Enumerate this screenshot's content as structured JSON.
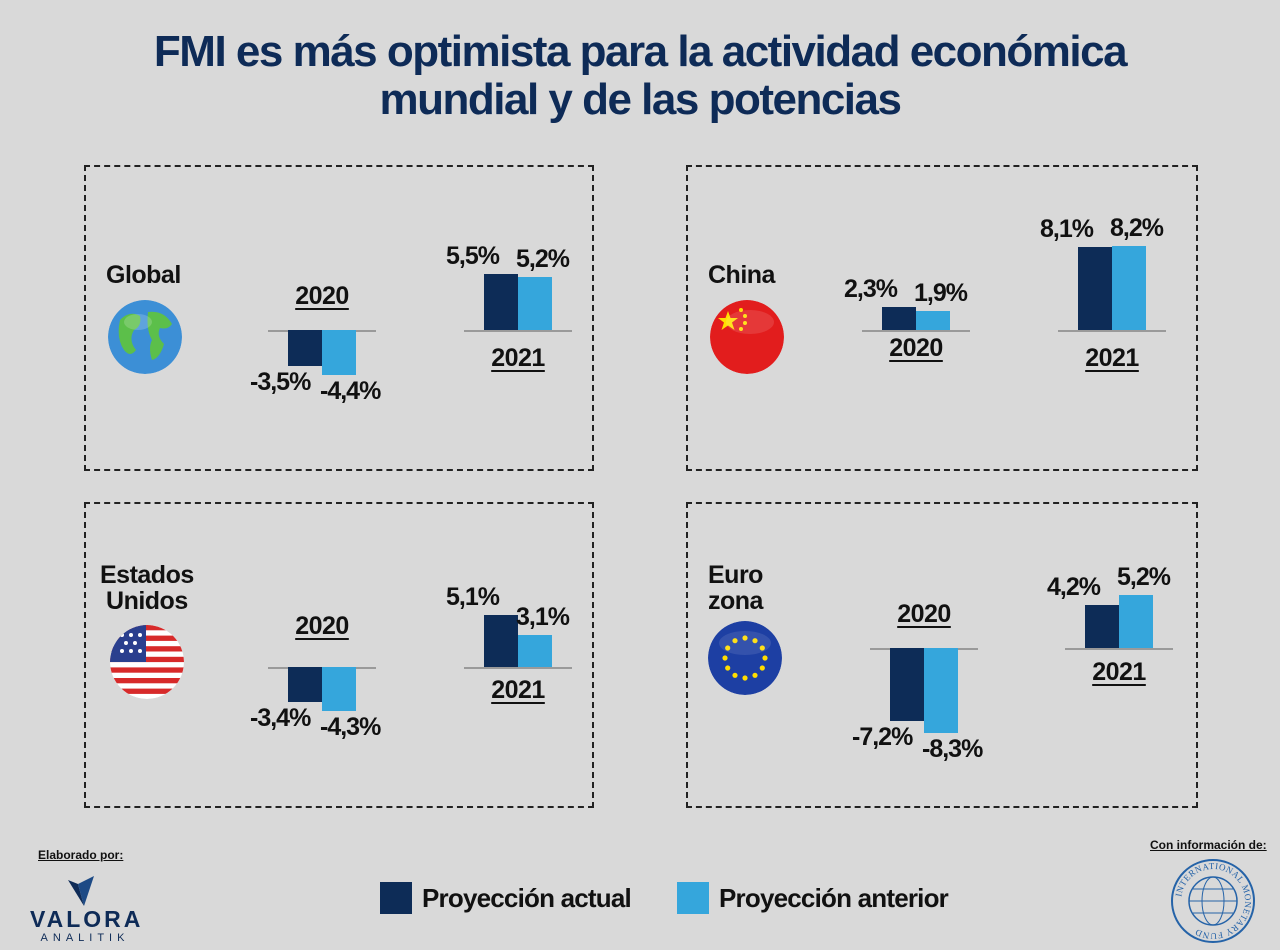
{
  "title": {
    "line1": "FMI es más optimista para la actividad económica",
    "line2": "mundial y de las potencias"
  },
  "colors": {
    "actual": "#0d2c57",
    "anterior": "#35a6dc",
    "title": "#0e2b57",
    "background": "#d9d9d9"
  },
  "chart_data": [
    {
      "type": "bar",
      "region": "Global",
      "flag_icon": "globe-icon",
      "categories": [
        "2020",
        "2021"
      ],
      "series": [
        {
          "name": "Proyección actual",
          "values": [
            -3.5,
            5.5
          ]
        },
        {
          "name": "Proyección anterior",
          "values": [
            -4.4,
            5.2
          ]
        }
      ],
      "labels": [
        [
          "-3,5%",
          "5,5%"
        ],
        [
          "-4,4%",
          "5,2%"
        ]
      ]
    },
    {
      "type": "bar",
      "region": "China",
      "flag_icon": "china-flag-icon",
      "categories": [
        "2020",
        "2021"
      ],
      "series": [
        {
          "name": "Proyección actual",
          "values": [
            2.3,
            8.1
          ]
        },
        {
          "name": "Proyección anterior",
          "values": [
            1.9,
            8.2
          ]
        }
      ],
      "labels": [
        [
          "2,3%",
          "8,1%"
        ],
        [
          "1,9%",
          "8,2%"
        ]
      ]
    },
    {
      "type": "bar",
      "region": "Estados\nUnidos",
      "flag_icon": "usa-flag-icon",
      "categories": [
        "2020",
        "2021"
      ],
      "series": [
        {
          "name": "Proyección actual",
          "values": [
            -3.4,
            5.1
          ]
        },
        {
          "name": "Proyección anterior",
          "values": [
            -4.3,
            3.1
          ]
        }
      ],
      "labels": [
        [
          "-3,4%",
          "5,1%"
        ],
        [
          "-4,3%",
          "3,1%"
        ]
      ]
    },
    {
      "type": "bar",
      "region": "Euro\nzona",
      "flag_icon": "eu-flag-icon",
      "categories": [
        "2020",
        "2021"
      ],
      "series": [
        {
          "name": "Proyección actual",
          "values": [
            -7.2,
            4.2
          ]
        },
        {
          "name": "Proyección anterior",
          "values": [
            -8.3,
            5.2
          ]
        }
      ],
      "labels": [
        [
          "-7,2%",
          "4,2%"
        ],
        [
          "-8,3%",
          "5,2%"
        ]
      ]
    }
  ],
  "legend": {
    "actual": "Proyección actual",
    "anterior": "Proyección anterior"
  },
  "footer": {
    "made_by": "Elaborado por:",
    "brand": "VALORA",
    "brand_sub": "ANALITIK",
    "source_label": "Con información de:",
    "source_seal_text": "INTERNATIONAL MONETARY FUND"
  }
}
